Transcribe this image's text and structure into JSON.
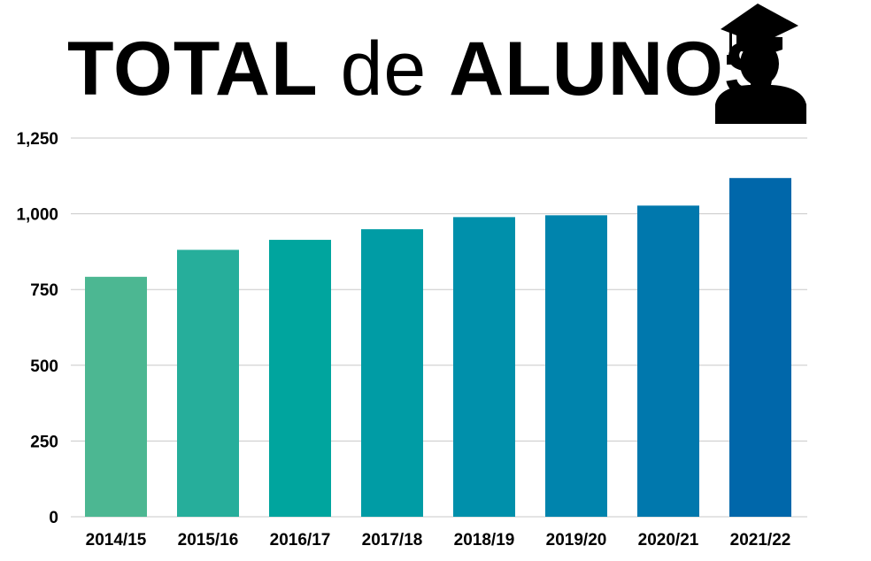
{
  "title": {
    "part1": "TOTAL",
    "part2": "de",
    "part3": "ALUNOS"
  },
  "icon": "graduate-icon",
  "chart_data": {
    "type": "bar",
    "title": "TOTAL de ALUNOS",
    "xlabel": "",
    "ylabel": "",
    "categories": [
      "2014/15",
      "2015/16",
      "2016/17",
      "2017/18",
      "2018/19",
      "2019/20",
      "2020/21",
      "2021/22"
    ],
    "values": [
      792,
      881,
      914,
      949,
      989,
      995,
      1027,
      1118
    ],
    "ylim": [
      0,
      1250
    ],
    "yticks": [
      0,
      250,
      500,
      750,
      1000,
      1250
    ],
    "ytick_labels": [
      "0",
      "250",
      "500",
      "750",
      "1,000",
      "1,250"
    ],
    "grid": true,
    "legend": "none",
    "colors": [
      "#4cb792",
      "#26ae9b",
      "#00a59e",
      "#009ca5",
      "#0090ab",
      "#0084ad",
      "#0078ad",
      "#0067aa"
    ]
  }
}
